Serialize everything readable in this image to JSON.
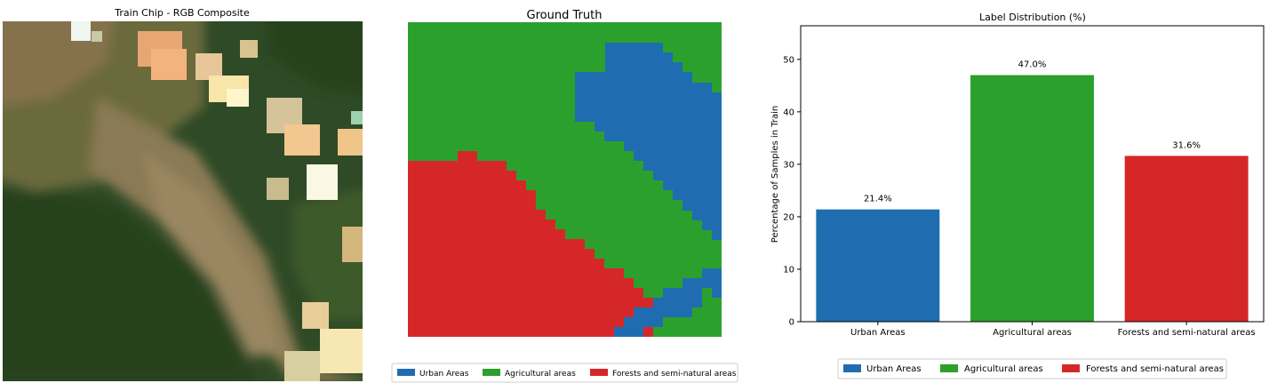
{
  "panels": {
    "rgb": {
      "title": "Train Chip - RGB Composite"
    },
    "gt": {
      "title": "Ground Truth"
    }
  },
  "legend": {
    "items": [
      {
        "label": "Urban Areas",
        "color": "#1f6db0"
      },
      {
        "label": "Agricultural areas",
        "color": "#2ca02c"
      },
      {
        "label": "Forests and semi-natural areas",
        "color": "#d62728"
      }
    ]
  },
  "chart_data": {
    "type": "bar",
    "title": "Label Distribution (%)",
    "xlabel": "",
    "ylabel": "Percentage of Samples in Train",
    "categories": [
      "Urban Areas",
      "Agricultural areas",
      "Forests and semi-natural areas"
    ],
    "values": [
      21.4,
      47.0,
      31.6
    ],
    "value_labels": [
      "21.4%",
      "47.0%",
      "31.6%"
    ],
    "colors": [
      "#1f6db0",
      "#2ca02c",
      "#d62728"
    ],
    "ylim": [
      0,
      56.4
    ],
    "yticks": [
      0,
      10,
      20,
      30,
      40,
      50
    ],
    "grid": false,
    "legend_position": "bottom-center"
  }
}
